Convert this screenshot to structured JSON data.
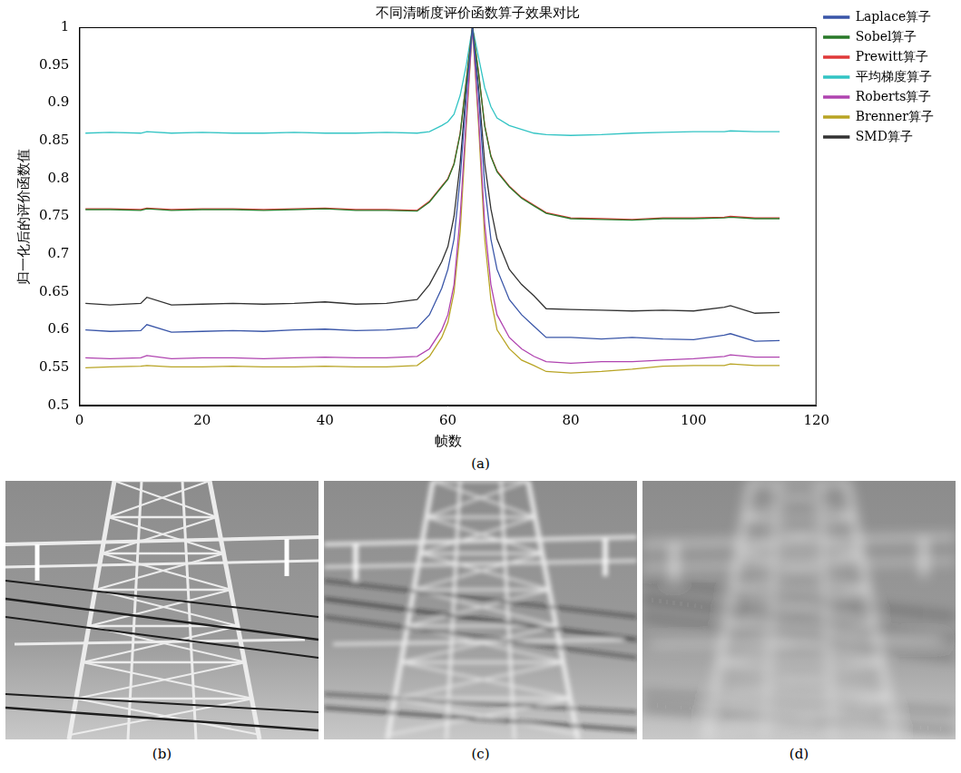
{
  "chart_data": {
    "type": "line",
    "title": "不同清晰度评价函数算子效果对比",
    "x_label": "帧数",
    "y_label": "归一化后的评价函数值",
    "caption": "(a)",
    "x": [
      1,
      5,
      10,
      11,
      15,
      20,
      25,
      30,
      35,
      40,
      45,
      50,
      55,
      57,
      59,
      60,
      61,
      62,
      63,
      64,
      65,
      66,
      67,
      68,
      70,
      72,
      74,
      76,
      80,
      85,
      90,
      95,
      100,
      105,
      106,
      110,
      114
    ],
    "series": [
      {
        "name": "Laplace算子",
        "color": "#3a56a8",
        "values": [
          0.6,
          0.598,
          0.599,
          0.607,
          0.597,
          0.598,
          0.599,
          0.598,
          0.6,
          0.601,
          0.599,
          0.6,
          0.603,
          0.62,
          0.655,
          0.68,
          0.72,
          0.8,
          0.91,
          1.0,
          0.91,
          0.79,
          0.72,
          0.68,
          0.64,
          0.62,
          0.605,
          0.59,
          0.59,
          0.588,
          0.59,
          0.588,
          0.587,
          0.593,
          0.595,
          0.585,
          0.586
        ]
      },
      {
        "name": "Sobel算子",
        "color": "#2a7a2a",
        "values": [
          0.759,
          0.759,
          0.758,
          0.76,
          0.758,
          0.759,
          0.759,
          0.758,
          0.759,
          0.76,
          0.758,
          0.758,
          0.757,
          0.769,
          0.789,
          0.799,
          0.819,
          0.859,
          0.929,
          1.0,
          0.939,
          0.869,
          0.829,
          0.809,
          0.789,
          0.774,
          0.764,
          0.754,
          0.747,
          0.746,
          0.745,
          0.747,
          0.747,
          0.748,
          0.749,
          0.747,
          0.747
        ]
      },
      {
        "name": "Prewitt算子",
        "color": "#e03a3a",
        "values": [
          0.76,
          0.76,
          0.759,
          0.761,
          0.759,
          0.76,
          0.76,
          0.759,
          0.76,
          0.761,
          0.759,
          0.759,
          0.758,
          0.77,
          0.79,
          0.8,
          0.82,
          0.86,
          0.93,
          1.0,
          0.94,
          0.87,
          0.83,
          0.81,
          0.79,
          0.775,
          0.765,
          0.755,
          0.748,
          0.747,
          0.746,
          0.748,
          0.748,
          0.749,
          0.75,
          0.748,
          0.748
        ]
      },
      {
        "name": "平均梯度算子",
        "color": "#33c4c4",
        "values": [
          0.86,
          0.861,
          0.86,
          0.862,
          0.86,
          0.861,
          0.86,
          0.86,
          0.861,
          0.86,
          0.86,
          0.861,
          0.86,
          0.862,
          0.87,
          0.875,
          0.885,
          0.91,
          0.95,
          1.0,
          0.96,
          0.92,
          0.895,
          0.88,
          0.87,
          0.865,
          0.86,
          0.858,
          0.857,
          0.858,
          0.86,
          0.861,
          0.862,
          0.862,
          0.863,
          0.862,
          0.862
        ]
      },
      {
        "name": "Roberts算子",
        "color": "#b044b0",
        "values": [
          0.563,
          0.562,
          0.563,
          0.566,
          0.562,
          0.563,
          0.563,
          0.562,
          0.563,
          0.564,
          0.563,
          0.563,
          0.565,
          0.575,
          0.6,
          0.62,
          0.66,
          0.75,
          0.88,
          1.0,
          0.88,
          0.74,
          0.66,
          0.62,
          0.59,
          0.575,
          0.565,
          0.558,
          0.556,
          0.558,
          0.558,
          0.56,
          0.562,
          0.565,
          0.567,
          0.564,
          0.564
        ]
      },
      {
        "name": "Brenner算子",
        "color": "#b8a424",
        "values": [
          0.55,
          0.551,
          0.552,
          0.553,
          0.551,
          0.551,
          0.552,
          0.551,
          0.551,
          0.552,
          0.551,
          0.551,
          0.553,
          0.565,
          0.59,
          0.61,
          0.65,
          0.73,
          0.87,
          1.0,
          0.87,
          0.72,
          0.64,
          0.6,
          0.575,
          0.56,
          0.553,
          0.545,
          0.543,
          0.545,
          0.548,
          0.552,
          0.553,
          0.553,
          0.555,
          0.553,
          0.553
        ]
      },
      {
        "name": "SMD算子",
        "color": "#333333",
        "values": [
          0.635,
          0.633,
          0.635,
          0.643,
          0.633,
          0.634,
          0.635,
          0.634,
          0.635,
          0.637,
          0.634,
          0.635,
          0.64,
          0.66,
          0.69,
          0.71,
          0.75,
          0.82,
          0.92,
          1.0,
          0.92,
          0.82,
          0.76,
          0.72,
          0.68,
          0.66,
          0.645,
          0.628,
          0.627,
          0.626,
          0.625,
          0.626,
          0.625,
          0.63,
          0.632,
          0.622,
          0.623
        ]
      }
    ],
    "xlim": [
      0,
      120
    ],
    "xticks": [
      0,
      20,
      40,
      60,
      80,
      100,
      120
    ],
    "ylim": [
      0.5,
      1
    ],
    "yticks": [
      0.5,
      0.55,
      0.6,
      0.65,
      0.7,
      0.75,
      0.8,
      0.85,
      0.9,
      0.95,
      1
    ],
    "grid": false,
    "legend": "right"
  },
  "images": [
    {
      "caption": "(b)"
    },
    {
      "caption": "(c)"
    },
    {
      "caption": "(d)"
    }
  ]
}
